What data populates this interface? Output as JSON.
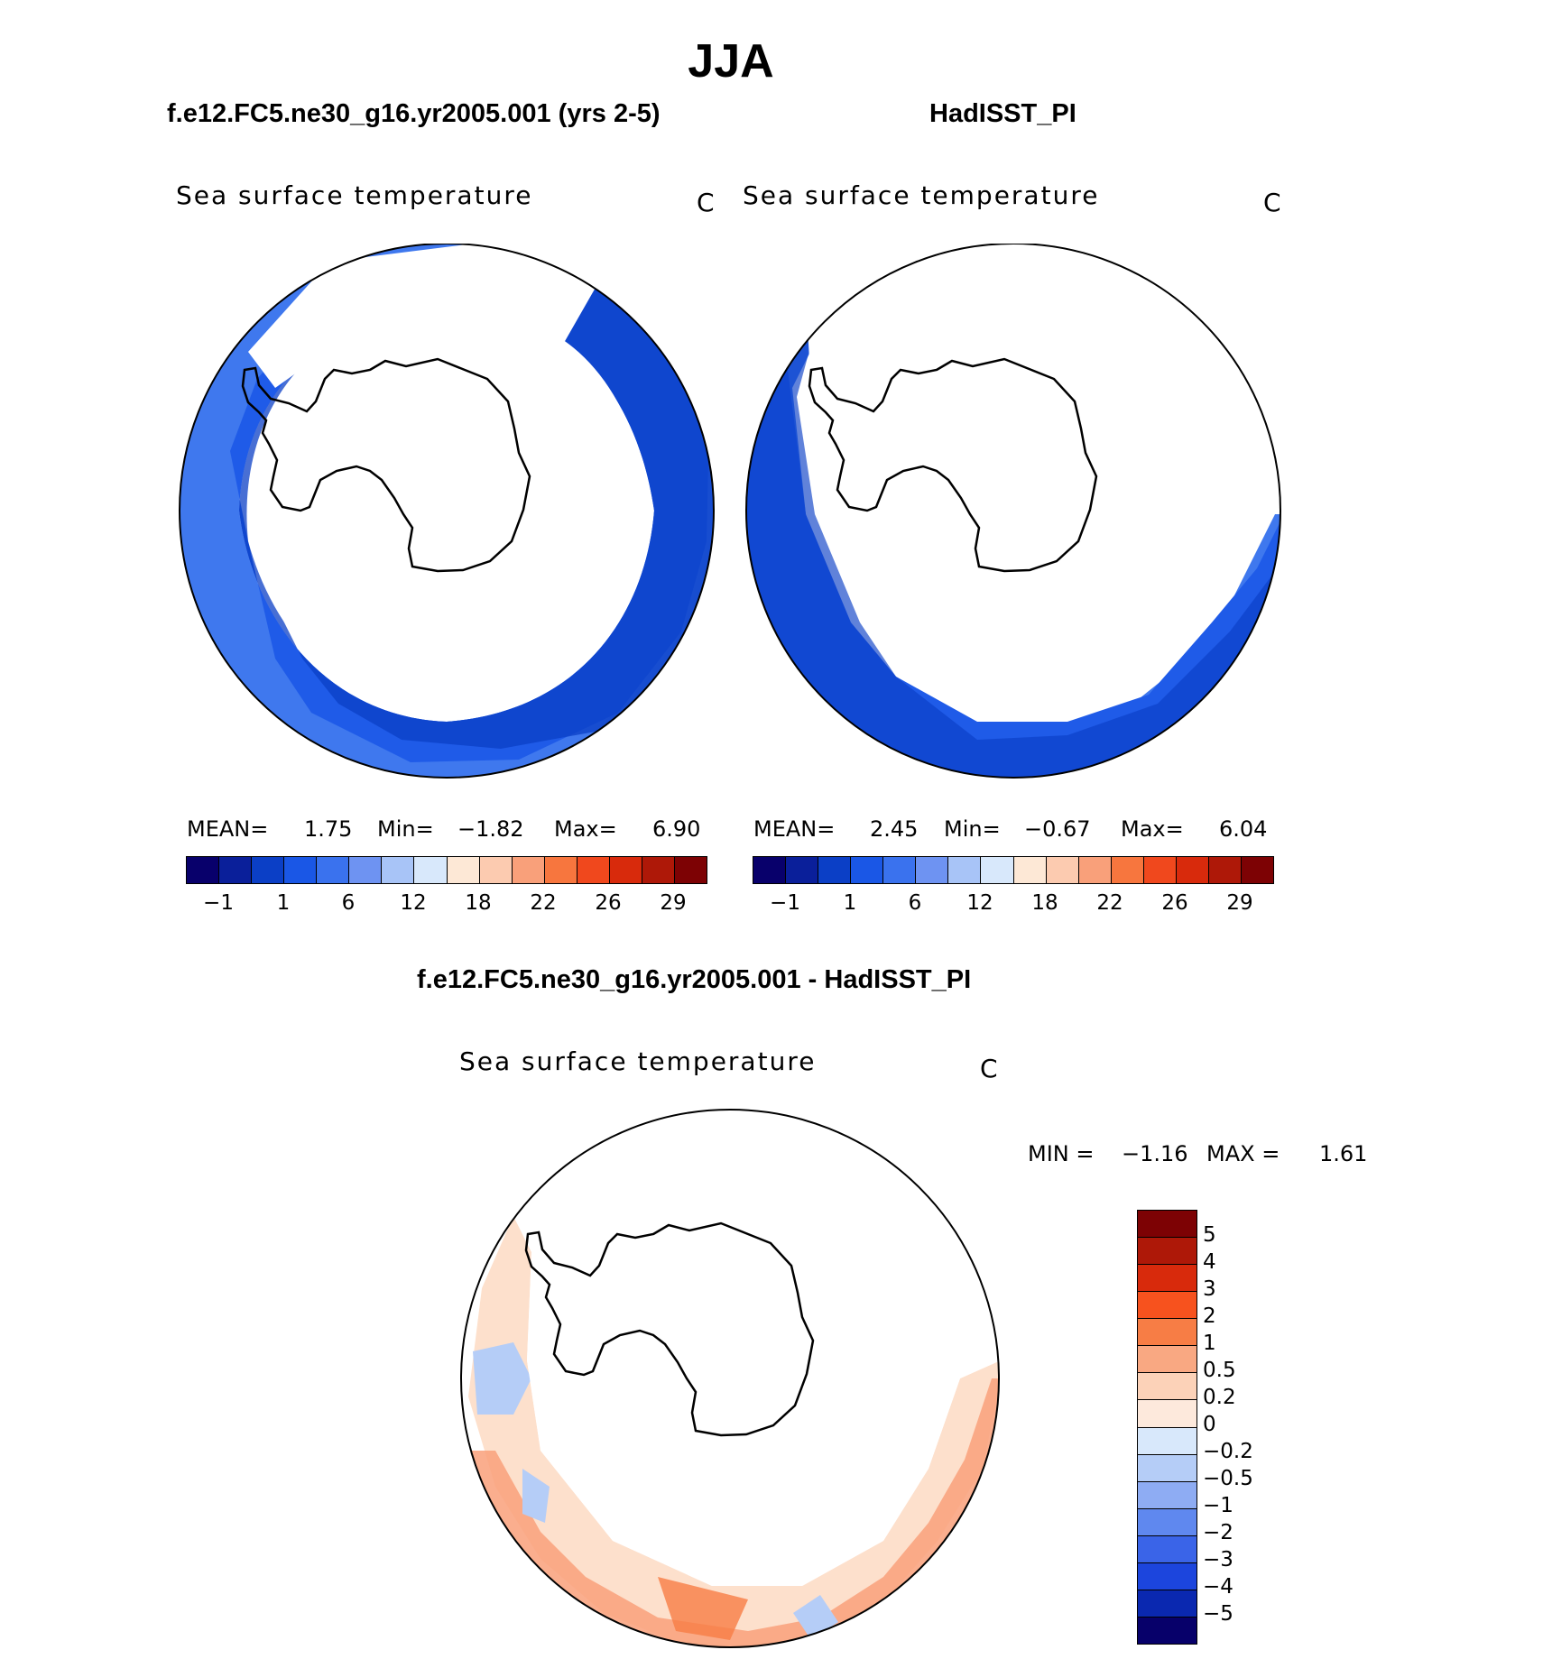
{
  "title": "JJA",
  "panels": [
    {
      "case": "f.e12.FC5.ne30_g16.yr2005.001 (yrs 2-5)",
      "variable": "Sea surface temperature",
      "units": "C",
      "stats": {
        "mean_label": "MEAN=",
        "mean": "1.75",
        "min_label": "Min=",
        "min": "−1.82",
        "max_label": "Max=",
        "max": "6.90"
      }
    },
    {
      "case": "HadISST_PI",
      "variable": "Sea surface temperature",
      "units": "C",
      "stats": {
        "mean_label": "MEAN=",
        "mean": "2.45",
        "min_label": "Min=",
        "min": "−0.67",
        "max_label": "Max=",
        "max": "6.04"
      }
    }
  ],
  "sst_colorbar": {
    "colors": [
      "#08006b",
      "#0a1f9a",
      "#0b3fc6",
      "#1a57e6",
      "#3a72ee",
      "#6e93f2",
      "#a8c4f7",
      "#d8e8fb",
      "#fde8d6",
      "#fccbb0",
      "#f9a07a",
      "#f7763e",
      "#f0481d",
      "#d82a0c",
      "#ae1808",
      "#7d0204"
    ],
    "labels": [
      "−1",
      "1",
      "6",
      "12",
      "18",
      "22",
      "26",
      "29"
    ]
  },
  "difference": {
    "title": "f.e12.FC5.ne30_g16.yr2005.001 - HadISST_PI",
    "variable": "Sea surface temperature",
    "units": "C",
    "stats": {
      "min_label": "MIN =",
      "min": "−1.16",
      "max_label": "MAX =",
      "max": "1.61"
    },
    "colorbar": {
      "colors": [
        "#7d0204",
        "#ae1808",
        "#d82a0c",
        "#f7521e",
        "#f77d45",
        "#f9a882",
        "#fcd2b8",
        "#fde9dc",
        "#d8e8fb",
        "#b5cdf7",
        "#8eacf3",
        "#5f88ef",
        "#3a64e8",
        "#1c45dd",
        "#0a28b0",
        "#07006a"
      ],
      "labels": [
        "5",
        "4",
        "3",
        "2",
        "1",
        "0.5",
        "0.2",
        "0",
        "−0.2",
        "−0.5",
        "−1",
        "−2",
        "−3",
        "−4",
        "−5"
      ]
    }
  },
  "colors": {
    "ocean_dark": "#0b3fc6",
    "ocean_mid": "#1f5be8",
    "ocean_light": "#3f78ee",
    "diff_warm": "#f9a07a",
    "diff_pale": "#fde0cc",
    "diff_cool": "#b5cdf7"
  }
}
